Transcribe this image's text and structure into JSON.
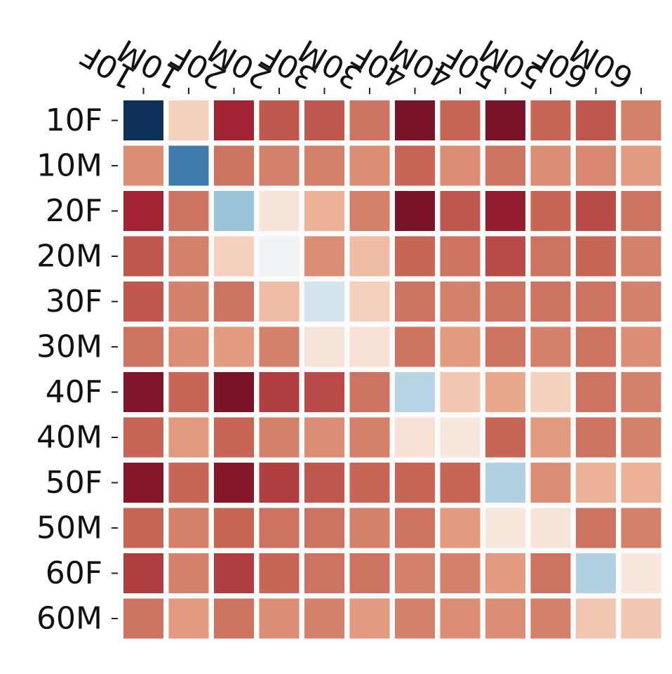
{
  "chart_data": {
    "type": "heatmap",
    "title": "",
    "xlabel": "",
    "ylabel": "",
    "x_categories": [
      "10F",
      "10M",
      "20F",
      "20M",
      "30F",
      "30M",
      "40F",
      "40M",
      "50F",
      "50M",
      "60F",
      "60M"
    ],
    "y_categories": [
      "10F",
      "10M",
      "20F",
      "20M",
      "30F",
      "30M",
      "40F",
      "40M",
      "50F",
      "50M",
      "60F",
      "60M"
    ],
    "colormap": "RdBu_r (diverging: blue = low, red = high)",
    "value_range": [
      0,
      1
    ],
    "values": [
      [
        0.0,
        0.62,
        0.9,
        0.82,
        0.82,
        0.78,
        0.96,
        0.8,
        0.96,
        0.8,
        0.82,
        0.76
      ],
      [
        0.74,
        0.15,
        0.78,
        0.76,
        0.76,
        0.74,
        0.8,
        0.74,
        0.78,
        0.74,
        0.75,
        0.72
      ],
      [
        0.9,
        0.78,
        0.3,
        0.57,
        0.68,
        0.76,
        0.96,
        0.82,
        0.92,
        0.8,
        0.84,
        0.78
      ],
      [
        0.82,
        0.76,
        0.62,
        0.48,
        0.74,
        0.66,
        0.8,
        0.78,
        0.84,
        0.78,
        0.8,
        0.76
      ],
      [
        0.82,
        0.76,
        0.78,
        0.66,
        0.4,
        0.62,
        0.78,
        0.76,
        0.78,
        0.78,
        0.78,
        0.76
      ],
      [
        0.78,
        0.74,
        0.72,
        0.76,
        0.57,
        0.58,
        0.78,
        0.72,
        0.78,
        0.76,
        0.78,
        0.74
      ],
      [
        0.95,
        0.8,
        0.96,
        0.86,
        0.84,
        0.78,
        0.35,
        0.64,
        0.7,
        0.62,
        0.78,
        0.76
      ],
      [
        0.8,
        0.72,
        0.8,
        0.76,
        0.74,
        0.76,
        0.58,
        0.56,
        0.8,
        0.72,
        0.78,
        0.76
      ],
      [
        0.94,
        0.8,
        0.94,
        0.86,
        0.82,
        0.8,
        0.8,
        0.8,
        0.34,
        0.74,
        0.68,
        0.68
      ],
      [
        0.8,
        0.76,
        0.8,
        0.78,
        0.78,
        0.76,
        0.78,
        0.72,
        0.56,
        0.57,
        0.78,
        0.76
      ],
      [
        0.86,
        0.76,
        0.86,
        0.8,
        0.78,
        0.78,
        0.76,
        0.76,
        0.72,
        0.78,
        0.34,
        0.56
      ],
      [
        0.78,
        0.72,
        0.78,
        0.74,
        0.76,
        0.72,
        0.76,
        0.74,
        0.74,
        0.76,
        0.64,
        0.64
      ]
    ],
    "grid": false,
    "legend": "none"
  }
}
